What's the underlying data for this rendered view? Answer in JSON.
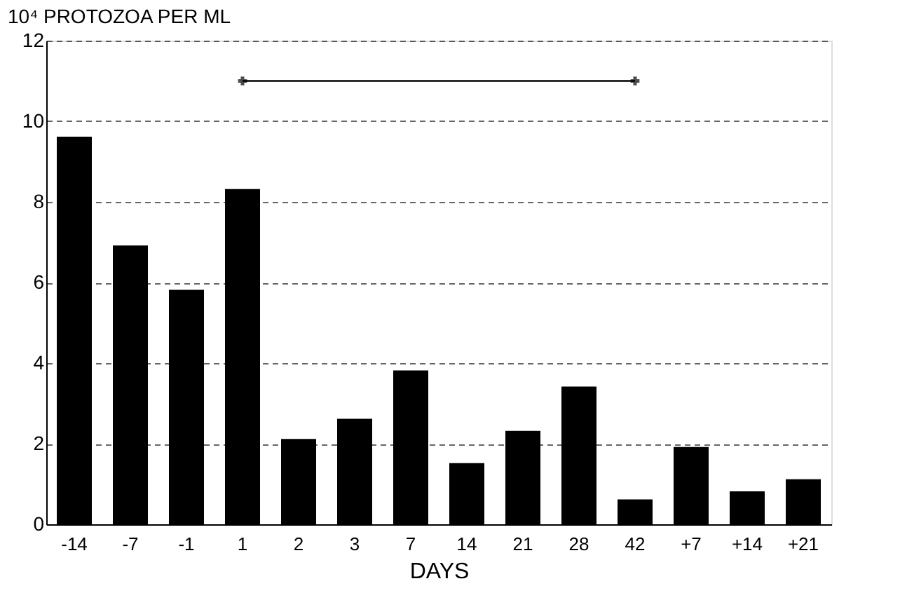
{
  "chart_data": {
    "type": "bar",
    "ylabel": "10⁴ PROTOZOA PER ML",
    "xlabel": "DAYS",
    "categories": [
      "-14",
      "-7",
      "-1",
      "1",
      "2",
      "3",
      "7",
      "14",
      "21",
      "28",
      "42",
      "+7",
      "+14",
      "+21"
    ],
    "series": [
      {
        "color": "#000000",
        "values": [
          9.6,
          6.9,
          5.8,
          8.3,
          2.1,
          2.6,
          3.8,
          1.5,
          2.3,
          3.4,
          0.6,
          1.9,
          0.8,
          1.1
        ]
      },
      {
        "type": "line",
        "color": "#000000",
        "x": [
          "1",
          "42"
        ],
        "values": [
          11,
          11
        ],
        "marker": "cross"
      }
    ],
    "ylim": [
      0,
      12
    ],
    "yticks": [
      0,
      2,
      4,
      6,
      8,
      10,
      12
    ],
    "grid": "y",
    "line_style": "solid"
  }
}
